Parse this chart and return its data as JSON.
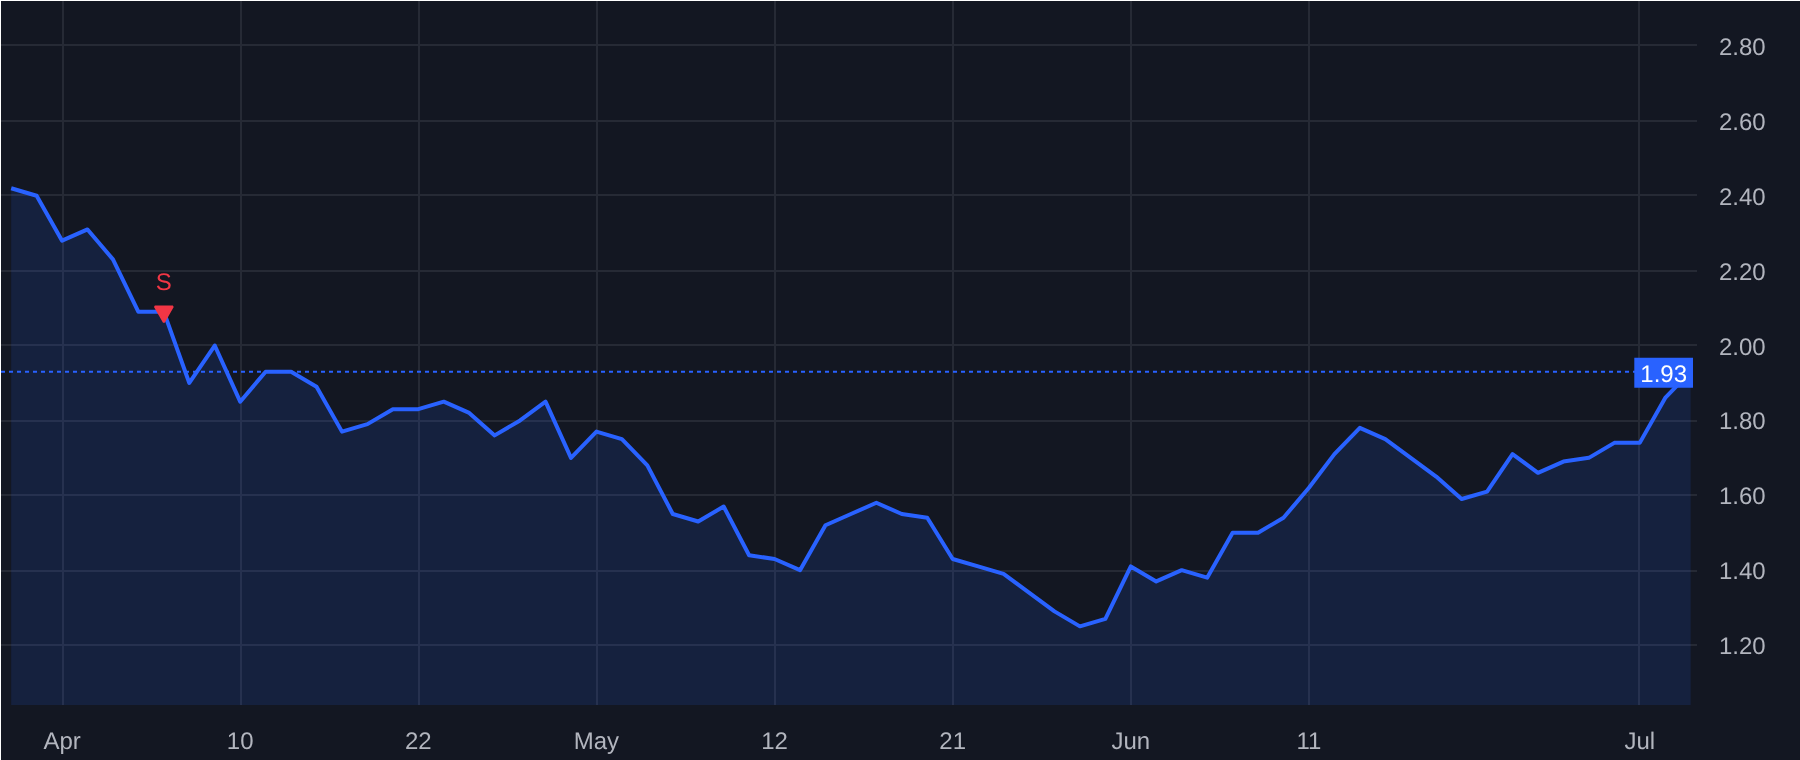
{
  "chart_data": {
    "type": "area",
    "categories": [
      null,
      null,
      "Apr",
      null,
      null,
      null,
      null,
      null,
      null,
      "10",
      null,
      null,
      null,
      null,
      null,
      null,
      "22",
      null,
      null,
      null,
      null,
      null,
      null,
      "May",
      null,
      null,
      null,
      null,
      null,
      null,
      "12",
      null,
      null,
      null,
      null,
      null,
      null,
      "21",
      null,
      null,
      null,
      null,
      null,
      null,
      "Jun",
      null,
      null,
      null,
      null,
      null,
      null,
      "11",
      null,
      null,
      null,
      null,
      null,
      null,
      null,
      null,
      null,
      null,
      null,
      null,
      "Jul",
      null,
      null
    ],
    "series": [
      {
        "color": "#2962ff",
        "values": [
          2.42,
          2.4,
          2.28,
          2.31,
          2.23,
          2.09,
          2.09,
          1.9,
          2.0,
          1.85,
          1.93,
          1.93,
          1.89,
          1.77,
          1.79,
          1.83,
          1.83,
          1.85,
          1.82,
          1.76,
          1.8,
          1.85,
          1.7,
          1.77,
          1.75,
          1.68,
          1.55,
          1.53,
          1.57,
          1.44,
          1.43,
          1.4,
          1.52,
          1.55,
          1.58,
          1.55,
          1.54,
          1.43,
          1.41,
          1.39,
          1.34,
          1.29,
          1.25,
          1.27,
          1.41,
          1.37,
          1.4,
          1.38,
          1.5,
          1.5,
          1.54,
          1.62,
          1.71,
          1.78,
          1.75,
          1.7,
          1.65,
          1.59,
          1.61,
          1.71,
          1.66,
          1.69,
          1.7,
          1.74,
          1.74,
          1.86,
          1.93
        ]
      },
      {
        "type": "scatter",
        "color": "#f23645",
        "marker": "triangle",
        "values": [
          null,
          null,
          null,
          null,
          null,
          null,
          2.09,
          null,
          null,
          null,
          null,
          null,
          null,
          null,
          null,
          null,
          null,
          null,
          null,
          null,
          null,
          null,
          null,
          null,
          null,
          null,
          null,
          null,
          null,
          null,
          null,
          null,
          null,
          null,
          null,
          null,
          null,
          null,
          null,
          null,
          null,
          null,
          null,
          null,
          null,
          null,
          null,
          null,
          null,
          null,
          null,
          null,
          null,
          null,
          null,
          null,
          null,
          null,
          null,
          null,
          null,
          null,
          null,
          null,
          null,
          null,
          null
        ]
      }
    ],
    "annotations": [
      "S"
    ],
    "ylim": [
      1.04,
      2.92
    ],
    "yticks": [
      {
        "value": 1.2,
        "label": "1.20"
      },
      {
        "value": 1.4,
        "label": "1.40"
      },
      {
        "value": 1.6,
        "label": "1.60"
      },
      {
        "value": 1.8,
        "label": "1.80"
      },
      {
        "value": 2.0,
        "label": "2.00"
      },
      {
        "value": 2.2,
        "label": "2.20"
      },
      {
        "value": 2.4,
        "label": "2.40"
      },
      {
        "value": 2.6,
        "label": "2.60"
      },
      {
        "value": 2.8,
        "label": "2.80"
      }
    ],
    "ref_lines": [
      {
        "axis": "y",
        "value": 1.93,
        "label": "1.93",
        "color": "#2962ff",
        "line_style": "dotted"
      }
    ],
    "grid": true
  }
}
